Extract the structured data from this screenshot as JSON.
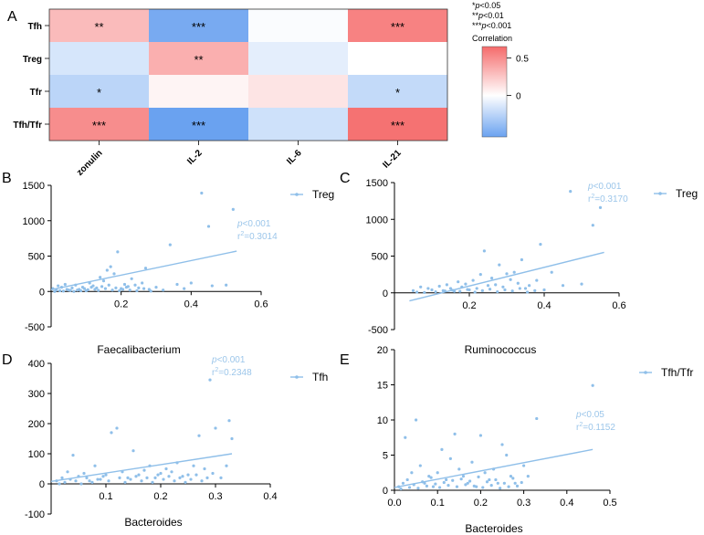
{
  "panel_labels": [
    "A",
    "B",
    "C",
    "D",
    "E"
  ],
  "colors": {
    "neg": "#6aa2f0",
    "pos": "#f56b6b",
    "mid": "#ffffff",
    "scatter": "#8fbfe9",
    "annot": "#9cc6ea"
  },
  "legend_sig": {
    "l1": "*",
    "l1p": "p",
    "l1v": "<0.05",
    "l2": "**",
    "l2p": "p",
    "l2v": "<0.01",
    "l3": "***",
    "l3p": "p",
    "l3v": "<0.001",
    "title": "Correlation"
  },
  "chart_data": [
    {
      "panel": "A",
      "type": "heatmap",
      "rows": [
        "Tfh",
        "Treg",
        "Tfr",
        "Tfh/Tfr"
      ],
      "columns": [
        "zonulin",
        "IL-2",
        "IL-6",
        "IL-21"
      ],
      "values": [
        [
          0.3,
          -0.5,
          -0.02,
          0.55
        ],
        [
          -0.15,
          0.35,
          -0.1,
          0.0
        ],
        [
          -0.25,
          0.05,
          0.12,
          -0.22
        ],
        [
          0.5,
          -0.55,
          -0.18,
          0.62
        ]
      ],
      "stars": [
        [
          "**",
          "***",
          "",
          "***"
        ],
        [
          "",
          "**",
          "",
          ""
        ],
        [
          "*",
          "",
          "",
          "*"
        ],
        [
          "***",
          "***",
          "",
          "***"
        ]
      ],
      "colorbar": {
        "range": [
          -0.55,
          0.65
        ],
        "ticks": [
          0.5,
          0
        ],
        "tick_labels": [
          "0.5",
          "0"
        ]
      }
    },
    {
      "panel": "B",
      "type": "scatter",
      "series": "Treg",
      "xlabel": "Faecalibacterium",
      "xlim": [
        0,
        0.6
      ],
      "ylim": [
        -500,
        1500
      ],
      "xticks": [
        0.2,
        0.4,
        0.6
      ],
      "xtick_labels": [
        "0.2",
        "0.4",
        "0.6"
      ],
      "yticks": [
        -500,
        0,
        500,
        1000,
        1500
      ],
      "ytick_labels": [
        "-500",
        "0",
        "500",
        "1000",
        "1500"
      ],
      "annotation": {
        "p": "p",
        "pv": "<0.001",
        "r": "r",
        "rv": "=0.3014"
      },
      "fit": [
        [
          0,
          25
        ],
        [
          0.53,
          570
        ]
      ],
      "points": [
        [
          0.005,
          40
        ],
        [
          0.015,
          20
        ],
        [
          0.02,
          80
        ],
        [
          0.03,
          60
        ],
        [
          0.04,
          100
        ],
        [
          0.05,
          20
        ],
        [
          0.06,
          50
        ],
        [
          0.07,
          90
        ],
        [
          0.08,
          30
        ],
        [
          0.09,
          60
        ],
        [
          0.1,
          10
        ],
        [
          0.11,
          120
        ],
        [
          0.12,
          80
        ],
        [
          0.13,
          50
        ],
        [
          0.14,
          200
        ],
        [
          0.15,
          150
        ],
        [
          0.16,
          300
        ],
        [
          0.17,
          350
        ],
        [
          0.18,
          250
        ],
        [
          0.19,
          560
        ],
        [
          0.2,
          40
        ],
        [
          0.21,
          100
        ],
        [
          0.22,
          70
        ],
        [
          0.23,
          180
        ],
        [
          0.24,
          90
        ],
        [
          0.25,
          50
        ],
        [
          0.26,
          120
        ],
        [
          0.27,
          330
        ],
        [
          0.28,
          30
        ],
        [
          0.3,
          60
        ],
        [
          0.32,
          20
        ],
        [
          0.34,
          660
        ],
        [
          0.36,
          100
        ],
        [
          0.38,
          40
        ],
        [
          0.4,
          120
        ],
        [
          0.43,
          1390
        ],
        [
          0.45,
          920
        ],
        [
          0.46,
          80
        ],
        [
          0.5,
          90
        ],
        [
          0.52,
          1160
        ],
        [
          0.01,
          0
        ],
        [
          0.025,
          10
        ],
        [
          0.035,
          5
        ],
        [
          0.045,
          30
        ],
        [
          0.055,
          15
        ],
        [
          0.065,
          0
        ],
        [
          0.075,
          20
        ],
        [
          0.085,
          10
        ],
        [
          0.095,
          40
        ],
        [
          0.105,
          25
        ],
        [
          0.115,
          60
        ],
        [
          0.125,
          30
        ],
        [
          0.135,
          15
        ],
        [
          0.145,
          70
        ],
        [
          0.155,
          40
        ],
        [
          0.165,
          90
        ],
        [
          0.175,
          20
        ],
        [
          0.185,
          50
        ],
        [
          0.195,
          10
        ],
        [
          0.205,
          30
        ],
        [
          0.215,
          60
        ],
        [
          0.225,
          20
        ],
        [
          0.245,
          10
        ],
        [
          0.265,
          40
        ],
        [
          0.285,
          5
        ]
      ]
    },
    {
      "panel": "C",
      "type": "scatter",
      "series": "Treg",
      "xlabel": "Ruminococcus",
      "xlim": [
        0,
        0.6
      ],
      "ylim": [
        -500,
        1500
      ],
      "xticks": [
        0.2,
        0.4,
        0.6
      ],
      "xtick_labels": [
        "0.2",
        "0.4",
        "0.6"
      ],
      "yticks": [
        -500,
        0,
        500,
        1000,
        1500
      ],
      "ytick_labels": [
        "-500",
        "0",
        "500",
        "1000",
        "1500"
      ],
      "annotation": {
        "p": "p",
        "pv": "<0.001",
        "r": "r",
        "rv": "=0.3170"
      },
      "fit": [
        [
          0.04,
          -110
        ],
        [
          0.56,
          550
        ]
      ],
      "points": [
        [
          0.05,
          30
        ],
        [
          0.07,
          80
        ],
        [
          0.09,
          60
        ],
        [
          0.1,
          40
        ],
        [
          0.12,
          90
        ],
        [
          0.13,
          30
        ],
        [
          0.14,
          110
        ],
        [
          0.15,
          60
        ],
        [
          0.16,
          20
        ],
        [
          0.17,
          150
        ],
        [
          0.18,
          80
        ],
        [
          0.19,
          120
        ],
        [
          0.2,
          40
        ],
        [
          0.21,
          170
        ],
        [
          0.22,
          60
        ],
        [
          0.23,
          250
        ],
        [
          0.24,
          570
        ],
        [
          0.25,
          100
        ],
        [
          0.26,
          200
        ],
        [
          0.27,
          110
        ],
        [
          0.28,
          380
        ],
        [
          0.29,
          80
        ],
        [
          0.3,
          260
        ],
        [
          0.31,
          180
        ],
        [
          0.32,
          280
        ],
        [
          0.33,
          130
        ],
        [
          0.34,
          450
        ],
        [
          0.35,
          60
        ],
        [
          0.36,
          100
        ],
        [
          0.38,
          170
        ],
        [
          0.39,
          660
        ],
        [
          0.4,
          40
        ],
        [
          0.42,
          280
        ],
        [
          0.45,
          100
        ],
        [
          0.47,
          1380
        ],
        [
          0.5,
          120
        ],
        [
          0.53,
          920
        ],
        [
          0.55,
          1160
        ],
        [
          0.06,
          10
        ],
        [
          0.08,
          5
        ],
        [
          0.11,
          15
        ],
        [
          0.135,
          25
        ],
        [
          0.155,
          35
        ],
        [
          0.175,
          20
        ],
        [
          0.195,
          45
        ],
        [
          0.215,
          10
        ],
        [
          0.235,
          30
        ],
        [
          0.255,
          50
        ],
        [
          0.275,
          15
        ],
        [
          0.295,
          40
        ],
        [
          0.315,
          25
        ],
        [
          0.335,
          60
        ],
        [
          0.355,
          10
        ],
        [
          0.375,
          30
        ]
      ]
    },
    {
      "panel": "D",
      "type": "scatter",
      "series": "Tfh",
      "xlabel": "Bacteroides",
      "xlim": [
        0,
        0.4
      ],
      "ylim": [
        -100,
        400
      ],
      "xticks": [
        0.1,
        0.2,
        0.3,
        0.4
      ],
      "xtick_labels": [
        "0.1",
        "0.2",
        "0.3",
        "0.4"
      ],
      "yticks": [
        -100,
        0,
        100,
        200,
        300,
        400
      ],
      "ytick_labels": [
        "-100",
        "0",
        "100",
        "200",
        "300",
        "400"
      ],
      "annotation": {
        "p": "p",
        "pv": "<0.001",
        "r": "r",
        "rv": "=0.2348"
      },
      "fit": [
        [
          0,
          8
        ],
        [
          0.33,
          100
        ]
      ],
      "points": [
        [
          0.01,
          10
        ],
        [
          0.02,
          20
        ],
        [
          0.03,
          40
        ],
        [
          0.04,
          95
        ],
        [
          0.05,
          25
        ],
        [
          0.06,
          35
        ],
        [
          0.07,
          10
        ],
        [
          0.08,
          60
        ],
        [
          0.09,
          15
        ],
        [
          0.1,
          30
        ],
        [
          0.11,
          170
        ],
        [
          0.12,
          185
        ],
        [
          0.13,
          40
        ],
        [
          0.14,
          20
        ],
        [
          0.15,
          110
        ],
        [
          0.16,
          30
        ],
        [
          0.17,
          45
        ],
        [
          0.18,
          60
        ],
        [
          0.19,
          20
        ],
        [
          0.2,
          35
        ],
        [
          0.21,
          50
        ],
        [
          0.22,
          40
        ],
        [
          0.23,
          70
        ],
        [
          0.24,
          25
        ],
        [
          0.25,
          30
        ],
        [
          0.26,
          60
        ],
        [
          0.27,
          160
        ],
        [
          0.28,
          50
        ],
        [
          0.29,
          345
        ],
        [
          0.3,
          185
        ],
        [
          0.31,
          20
        ],
        [
          0.32,
          60
        ],
        [
          0.325,
          210
        ],
        [
          0.33,
          150
        ],
        [
          0.015,
          0
        ],
        [
          0.025,
          5
        ],
        [
          0.035,
          15
        ],
        [
          0.045,
          10
        ],
        [
          0.055,
          0
        ],
        [
          0.065,
          20
        ],
        [
          0.075,
          5
        ],
        [
          0.085,
          15
        ],
        [
          0.095,
          25
        ],
        [
          0.105,
          10
        ],
        [
          0.125,
          20
        ],
        [
          0.135,
          5
        ],
        [
          0.145,
          15
        ],
        [
          0.155,
          25
        ],
        [
          0.165,
          10
        ],
        [
          0.175,
          20
        ],
        [
          0.185,
          5
        ],
        [
          0.195,
          30
        ],
        [
          0.205,
          15
        ],
        [
          0.215,
          25
        ],
        [
          0.225,
          10
        ],
        [
          0.235,
          20
        ],
        [
          0.245,
          5
        ],
        [
          0.255,
          15
        ],
        [
          0.265,
          30
        ],
        [
          0.275,
          10
        ],
        [
          0.285,
          20
        ],
        [
          0.295,
          35
        ]
      ]
    },
    {
      "panel": "E",
      "type": "scatter",
      "series": "Tfh/Tfr",
      "xlabel": "Bacteroides",
      "xlim": [
        0,
        0.5
      ],
      "ylim": [
        0,
        20
      ],
      "xticks": [
        0,
        0.1,
        0.2,
        0.3,
        0.4,
        0.5
      ],
      "xtick_labels": [
        "0.0",
        "0.1",
        "0.2",
        "0.3",
        "0.4",
        "0.5"
      ],
      "yticks": [
        0,
        5,
        10,
        15,
        20
      ],
      "ytick_labels": [
        "0",
        "5",
        "10",
        "15",
        "20"
      ],
      "annotation": {
        "p": "p",
        "pv": "<0.05",
        "r": "r",
        "rv": "=0.1152"
      },
      "fit": [
        [
          0,
          0.4
        ],
        [
          0.46,
          5.8
        ]
      ],
      "points": [
        [
          0.01,
          0.5
        ],
        [
          0.02,
          1
        ],
        [
          0.025,
          7.5
        ],
        [
          0.03,
          1.5
        ],
        [
          0.04,
          2.5
        ],
        [
          0.05,
          10
        ],
        [
          0.06,
          3.5
        ],
        [
          0.07,
          1
        ],
        [
          0.08,
          2
        ],
        [
          0.09,
          0.5
        ],
        [
          0.1,
          2.5
        ],
        [
          0.11,
          5.8
        ],
        [
          0.12,
          1.5
        ],
        [
          0.13,
          4.5
        ],
        [
          0.14,
          8
        ],
        [
          0.15,
          3
        ],
        [
          0.16,
          2
        ],
        [
          0.17,
          1
        ],
        [
          0.18,
          4
        ],
        [
          0.19,
          0.5
        ],
        [
          0.2,
          7.8
        ],
        [
          0.21,
          2.5
        ],
        [
          0.22,
          1.5
        ],
        [
          0.23,
          3
        ],
        [
          0.24,
          1
        ],
        [
          0.25,
          6.5
        ],
        [
          0.26,
          5
        ],
        [
          0.27,
          2
        ],
        [
          0.28,
          1
        ],
        [
          0.3,
          3.5
        ],
        [
          0.31,
          2
        ],
        [
          0.33,
          10.2
        ],
        [
          0.46,
          14.9
        ],
        [
          0.015,
          0.2
        ],
        [
          0.035,
          0.4
        ],
        [
          0.045,
          0.8
        ],
        [
          0.055,
          0.3
        ],
        [
          0.065,
          1.2
        ],
        [
          0.075,
          0.6
        ],
        [
          0.085,
          1.8
        ],
        [
          0.095,
          0.9
        ],
        [
          0.105,
          0.4
        ],
        [
          0.115,
          1.1
        ],
        [
          0.125,
          0.7
        ],
        [
          0.135,
          1.4
        ],
        [
          0.145,
          0.5
        ],
        [
          0.155,
          1.6
        ],
        [
          0.165,
          0.8
        ],
        [
          0.175,
          1.3
        ],
        [
          0.185,
          0.6
        ],
        [
          0.195,
          1.9
        ],
        [
          0.205,
          0.4
        ],
        [
          0.215,
          1.2
        ],
        [
          0.225,
          0.7
        ],
        [
          0.235,
          1.5
        ],
        [
          0.245,
          0.3
        ],
        [
          0.255,
          1.0
        ],
        [
          0.265,
          0.5
        ],
        [
          0.275,
          1.7
        ],
        [
          0.285,
          0.6
        ],
        [
          0.295,
          1.1
        ]
      ]
    }
  ]
}
